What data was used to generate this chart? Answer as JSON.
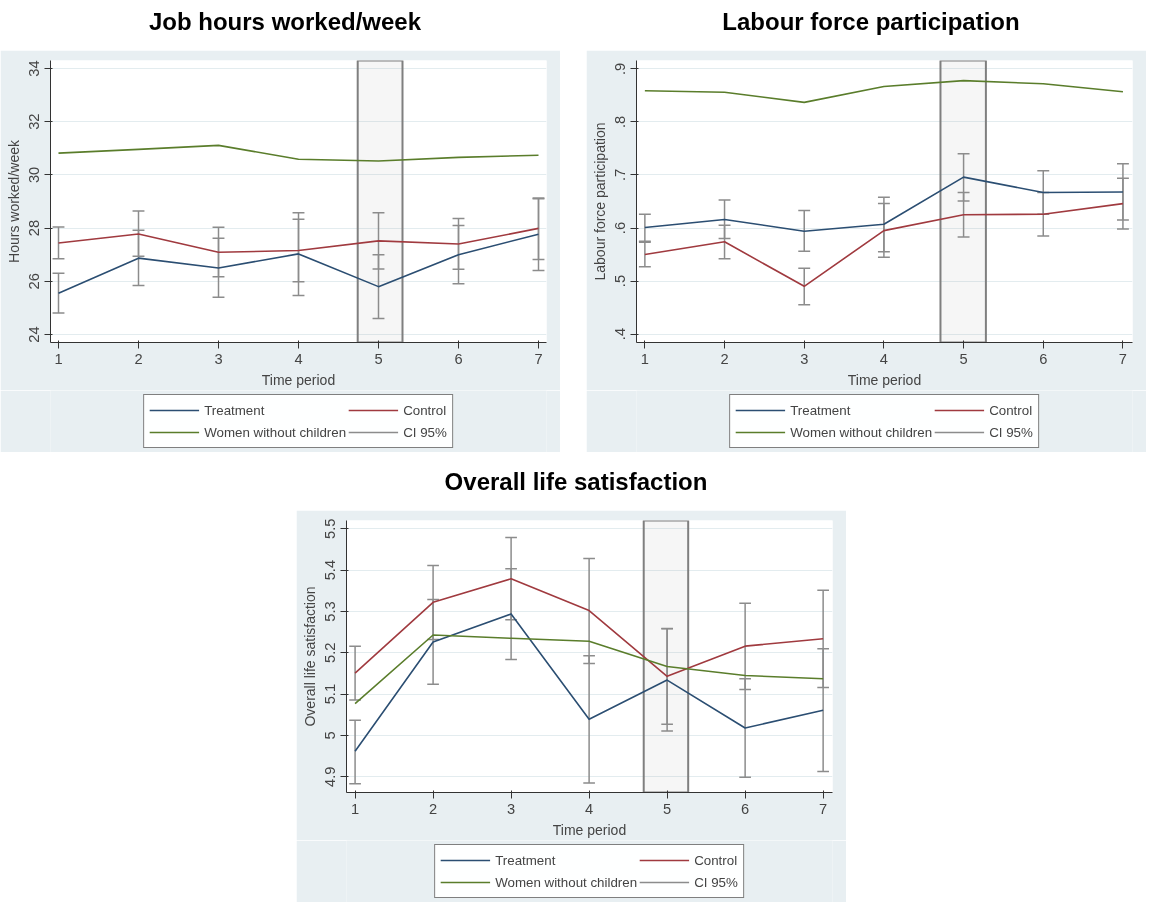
{
  "chart_data": [
    {
      "type": "line",
      "title": "Job hours worked/week",
      "xlabel": "Time period",
      "ylabel": "Hours worked/week",
      "x": [
        1,
        2,
        3,
        4,
        5,
        6,
        7
      ],
      "xlim": [
        0.9,
        7.1
      ],
      "xticks": [
        1,
        2,
        3,
        4,
        5,
        6,
        7
      ],
      "ylim": [
        23.7,
        34.3
      ],
      "yticks": [
        24,
        26,
        28,
        30,
        32,
        34
      ],
      "grid": "y",
      "legend": "bottom",
      "annotations": [
        "CI 95%"
      ],
      "bands": [
        {
          "axis": "x",
          "from": 4.74,
          "to": 5.3,
          "color": "#7f7f7f"
        }
      ],
      "series": [
        {
          "name": "Treatment",
          "color": "#2b4e72",
          "values": [
            25.55,
            26.87,
            26.5,
            27.03,
            25.8,
            27.0,
            27.77
          ],
          "errors": [
            [
              24.81,
              26.3
            ],
            [
              25.84,
              27.92
            ],
            [
              25.4,
              27.62
            ],
            [
              25.47,
              28.58
            ],
            [
              24.6,
              27.0
            ],
            [
              25.91,
              28.1
            ],
            [
              26.41,
              29.1
            ]
          ]
        },
        {
          "name": "Control",
          "color": "#a03a3f",
          "values": [
            27.44,
            27.78,
            27.09,
            27.16,
            27.52,
            27.4,
            27.99
          ],
          "errors": [
            [
              26.85,
              28.04
            ],
            [
              26.94,
              28.64
            ],
            [
              26.17,
              28.03
            ],
            [
              25.98,
              28.33
            ],
            [
              26.46,
              28.58
            ],
            [
              26.45,
              28.36
            ],
            [
              26.82,
              29.13
            ]
          ]
        },
        {
          "name": "Women without children",
          "color": "#5a7d2b",
          "values": [
            30.82,
            30.96,
            31.11,
            30.59,
            30.52,
            30.66,
            30.74
          ]
        }
      ]
    },
    {
      "type": "line",
      "title": "Labour force participation",
      "xlabel": "Time period",
      "ylabel": "Labour force participation",
      "x": [
        1,
        2,
        3,
        4,
        5,
        6,
        7
      ],
      "xlim": [
        0.895,
        7.12
      ],
      "xticks": [
        1,
        2,
        3,
        4,
        5,
        6,
        7
      ],
      "ylim": [
        0.384,
        0.916
      ],
      "yticks": [
        {
          "value": 0.4,
          "label": ".4"
        },
        {
          "value": 0.5,
          "label": ".5"
        },
        {
          "value": 0.6,
          "label": ".6"
        },
        {
          "value": 0.7,
          "label": ".7"
        },
        {
          "value": 0.8,
          "label": ".8"
        },
        {
          "value": 0.9,
          "label": ".9"
        }
      ],
      "grid": "y",
      "legend": "bottom",
      "annotations": [
        "CI 95%"
      ],
      "bands": [
        {
          "axis": "x",
          "from": 4.71,
          "to": 5.28,
          "color": "#7f7f7f"
        }
      ],
      "series": [
        {
          "name": "Treatment",
          "color": "#2b4e72",
          "values": [
            0.601,
            0.616,
            0.594,
            0.607,
            0.696,
            0.667,
            0.668
          ],
          "errors": [
            [
              0.575,
              0.626
            ],
            [
              0.58,
              0.653
            ],
            [
              0.556,
              0.633
            ],
            [
              0.555,
              0.658
            ],
            [
              0.651,
              0.74
            ],
            [
              0.626,
              0.708
            ],
            [
              0.615,
              0.721
            ]
          ]
        },
        {
          "name": "Control",
          "color": "#a03a3f",
          "values": [
            0.55,
            0.574,
            0.49,
            0.595,
            0.625,
            0.626,
            0.646
          ],
          "errors": [
            [
              0.527,
              0.573
            ],
            [
              0.542,
              0.605
            ],
            [
              0.455,
              0.524
            ],
            [
              0.545,
              0.646
            ],
            [
              0.583,
              0.667
            ],
            [
              0.585,
              0.667
            ],
            [
              0.598,
              0.694
            ]
          ]
        },
        {
          "name": "Women without children",
          "color": "#5a7d2b",
          "values": [
            0.859,
            0.856,
            0.837,
            0.867,
            0.878,
            0.872,
            0.857
          ]
        }
      ]
    },
    {
      "type": "line",
      "title": "Overall life satisfaction",
      "xlabel": "Time period",
      "ylabel": "Overall life satisfaction",
      "x": [
        1,
        2,
        3,
        4,
        5,
        6,
        7
      ],
      "xlim": [
        0.89,
        7.12
      ],
      "xticks": [
        1,
        2,
        3,
        4,
        5,
        6,
        7
      ],
      "ylim": [
        4.862,
        5.52
      ],
      "yticks": [
        4.9,
        5,
        5.1,
        5.2,
        5.3,
        5.4,
        5.5
      ],
      "grid": "y",
      "legend": "bottom",
      "annotations": [
        "CI 95%"
      ],
      "bands": [
        {
          "axis": "x",
          "from": 4.7,
          "to": 5.27,
          "color": "#7f7f7f"
        }
      ],
      "series": [
        {
          "name": "Treatment",
          "color": "#2b4e72",
          "values": [
            4.962,
            5.226,
            5.294,
            5.039,
            5.134,
            5.018,
            5.061
          ],
          "errors": [
            [
              4.883,
              5.037
            ],
            [
              5.124,
              5.329
            ],
            [
              5.184,
              5.403
            ],
            [
              4.885,
              5.193
            ],
            [
              5.011,
              5.258
            ],
            [
              4.899,
              5.137
            ],
            [
              4.913,
              5.21
            ]
          ]
        },
        {
          "name": "Control",
          "color": "#a03a3f",
          "values": [
            5.151,
            5.322,
            5.379,
            5.302,
            5.143,
            5.216,
            5.234
          ],
          "errors": [
            [
              5.086,
              5.216
            ],
            [
              5.232,
              5.411
            ],
            [
              5.28,
              5.479
            ],
            [
              5.174,
              5.428
            ],
            [
              5.027,
              5.259
            ],
            [
              5.111,
              5.32
            ],
            [
              5.116,
              5.351
            ]
          ]
        },
        {
          "name": "Women without children",
          "color": "#5a7d2b",
          "values": [
            5.077,
            5.243,
            5.235,
            5.228,
            5.167,
            5.145,
            5.137
          ]
        }
      ]
    }
  ]
}
